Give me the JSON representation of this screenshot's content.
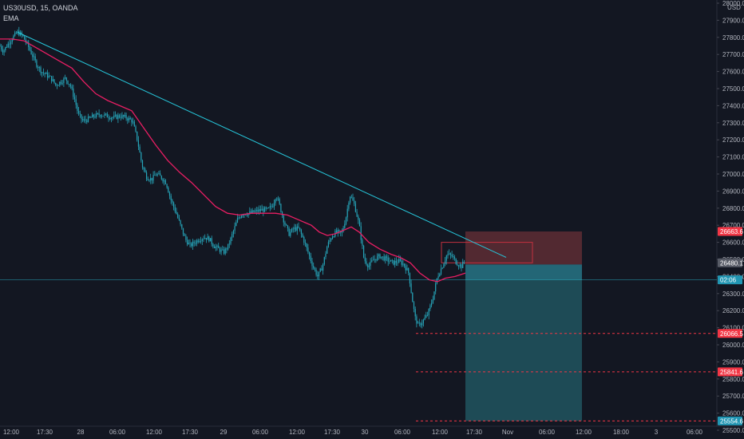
{
  "header": {
    "symbol_line": "US30USD, 15, OANDA",
    "indicator": "EMA"
  },
  "colors": {
    "background": "#131722",
    "candle": "#26a4b8",
    "ema": "#e91e63",
    "trendline": "#26c6da",
    "profit_zone": "#1f4e5a",
    "loss_zone": "#5a2b33",
    "stop_tag": "#f23645",
    "price_tag": "#2196b3",
    "current_tag": "#575b66",
    "grid": "#1e222d"
  },
  "chart_data": {
    "type": "candlestick",
    "currency_label": "USD",
    "y_ticks": [
      25500,
      25600,
      25700,
      25800,
      25900,
      26000,
      26100,
      26200,
      26300,
      26400,
      26500,
      26600,
      26700,
      26800,
      26900,
      27000,
      27100,
      27200,
      27300,
      27400,
      27500,
      27600,
      27700,
      27800,
      27900,
      28000
    ],
    "y_range": [
      25500,
      28000
    ],
    "x_labels": [
      "12:00",
      "17:30",
      "28",
      "06:00",
      "12:00",
      "17:30",
      "29",
      "06:00",
      "12:00",
      "17:30",
      "30",
      "06:00",
      "12:00",
      "17:30",
      "Nov",
      "06:00",
      "12:00",
      "18:00",
      "3",
      "06:00"
    ],
    "price_path": [
      [
        0,
        27750
      ],
      [
        4,
        27720
      ],
      [
        10,
        27760
      ],
      [
        16,
        27800
      ],
      [
        22,
        27830
      ],
      [
        28,
        27810
      ],
      [
        34,
        27760
      ],
      [
        40,
        27700
      ],
      [
        46,
        27640
      ],
      [
        52,
        27600
      ],
      [
        58,
        27580
      ],
      [
        64,
        27560
      ],
      [
        70,
        27520
      ],
      [
        76,
        27540
      ],
      [
        82,
        27560
      ],
      [
        88,
        27520
      ],
      [
        94,
        27430
      ],
      [
        98,
        27350
      ],
      [
        104,
        27310
      ],
      [
        110,
        27320
      ],
      [
        118,
        27340
      ],
      [
        126,
        27350
      ],
      [
        134,
        27340
      ],
      [
        142,
        27330
      ],
      [
        150,
        27340
      ],
      [
        158,
        27330
      ],
      [
        166,
        27310
      ],
      [
        172,
        27200
      ],
      [
        178,
        27050
      ],
      [
        184,
        26980
      ],
      [
        190,
        26970
      ],
      [
        196,
        27000
      ],
      [
        202,
        26980
      ],
      [
        208,
        26950
      ],
      [
        214,
        26850
      ],
      [
        220,
        26780
      ],
      [
        226,
        26700
      ],
      [
        232,
        26620
      ],
      [
        238,
        26580
      ],
      [
        244,
        26600
      ],
      [
        250,
        26620
      ],
      [
        256,
        26630
      ],
      [
        262,
        26620
      ],
      [
        268,
        26580
      ],
      [
        274,
        26560
      ],
      [
        280,
        26540
      ],
      [
        286,
        26580
      ],
      [
        292,
        26660
      ],
      [
        298,
        26740
      ],
      [
        304,
        26770
      ],
      [
        312,
        26770
      ],
      [
        320,
        26780
      ],
      [
        328,
        26790
      ],
      [
        336,
        26790
      ],
      [
        342,
        26820
      ],
      [
        346,
        26880
      ],
      [
        350,
        26820
      ],
      [
        356,
        26720
      ],
      [
        362,
        26650
      ],
      [
        368,
        26680
      ],
      [
        374,
        26680
      ],
      [
        380,
        26620
      ],
      [
        386,
        26540
      ],
      [
        392,
        26460
      ],
      [
        398,
        26400
      ],
      [
        404,
        26460
      ],
      [
        410,
        26580
      ],
      [
        416,
        26640
      ],
      [
        422,
        26660
      ],
      [
        428,
        26650
      ],
      [
        434,
        26760
      ],
      [
        438,
        26880
      ],
      [
        444,
        26820
      ],
      [
        450,
        26700
      ],
      [
        456,
        26500
      ],
      [
        462,
        26460
      ],
      [
        468,
        26500
      ],
      [
        476,
        26520
      ],
      [
        484,
        26500
      ],
      [
        492,
        26480
      ],
      [
        500,
        26490
      ],
      [
        506,
        26470
      ],
      [
        512,
        26420
      ],
      [
        516,
        26280
      ],
      [
        520,
        26160
      ],
      [
        524,
        26110
      ],
      [
        530,
        26140
      ],
      [
        536,
        26180
      ],
      [
        542,
        26270
      ],
      [
        548,
        26400
      ],
      [
        554,
        26460
      ],
      [
        560,
        26530
      ],
      [
        566,
        26520
      ],
      [
        572,
        26480
      ],
      [
        578,
        26460
      ],
      [
        583,
        26500
      ]
    ],
    "ema_path": [
      [
        0,
        27790
      ],
      [
        15,
        27790
      ],
      [
        30,
        27780
      ],
      [
        45,
        27740
      ],
      [
        60,
        27700
      ],
      [
        75,
        27660
      ],
      [
        90,
        27620
      ],
      [
        105,
        27540
      ],
      [
        120,
        27470
      ],
      [
        135,
        27430
      ],
      [
        150,
        27400
      ],
      [
        165,
        27370
      ],
      [
        180,
        27270
      ],
      [
        195,
        27170
      ],
      [
        210,
        27080
      ],
      [
        225,
        27010
      ],
      [
        240,
        26950
      ],
      [
        255,
        26880
      ],
      [
        270,
        26810
      ],
      [
        285,
        26770
      ],
      [
        300,
        26760
      ],
      [
        315,
        26770
      ],
      [
        330,
        26770
      ],
      [
        345,
        26770
      ],
      [
        360,
        26760
      ],
      [
        375,
        26730
      ],
      [
        390,
        26700
      ],
      [
        400,
        26660
      ],
      [
        410,
        26640
      ],
      [
        420,
        26650
      ],
      [
        430,
        26670
      ],
      [
        440,
        26690
      ],
      [
        450,
        26660
      ],
      [
        462,
        26600
      ],
      [
        476,
        26560
      ],
      [
        490,
        26530
      ],
      [
        502,
        26510
      ],
      [
        514,
        26480
      ],
      [
        526,
        26420
      ],
      [
        538,
        26380
      ],
      [
        548,
        26370
      ],
      [
        558,
        26390
      ],
      [
        570,
        26400
      ],
      [
        583,
        26420
      ]
    ],
    "trendline": {
      "from_x": 22,
      "from_price": 27830,
      "to_x": 634,
      "to_price": 26512
    },
    "position": {
      "from_x": 583,
      "to_x": 729,
      "stop_price": 26663.6,
      "entry_price": 26470,
      "target_price": 25554.6
    },
    "reference_box": {
      "from_x": 553,
      "to_x": 667,
      "top_price": 26600,
      "bottom_price": 26480
    },
    "dashed_levels": [
      {
        "price": 26066.5,
        "from_x": 521
      },
      {
        "price": 25841.6,
        "from_x": 521
      },
      {
        "price": 25554.6,
        "from_x": 521
      }
    ],
    "current_price_line": 26380,
    "price_tags": [
      {
        "label": "26663.6",
        "price": 26663.6,
        "kind": "stop"
      },
      {
        "label": "26480.1",
        "price": 26480.1,
        "kind": "current"
      },
      {
        "label": "02:06",
        "price": 26380,
        "kind": "timer"
      },
      {
        "label": "26066.5",
        "price": 26066.5,
        "kind": "stop"
      },
      {
        "label": "25841.6",
        "price": 25841.6,
        "kind": "stop"
      },
      {
        "label": "25554.6",
        "price": 25554.6,
        "kind": "timer"
      }
    ]
  }
}
